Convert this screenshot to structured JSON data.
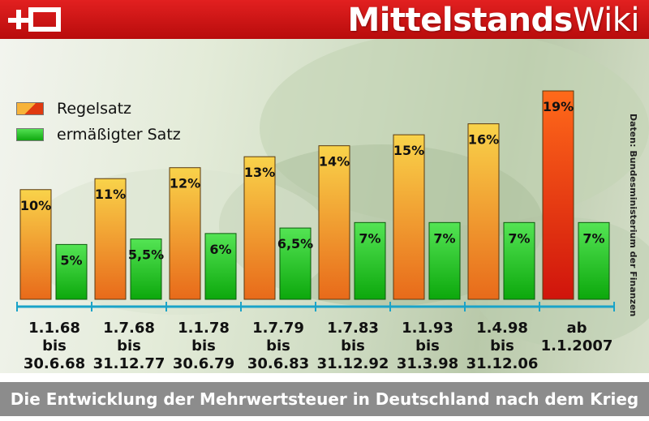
{
  "header": {
    "brand_bold": "Mittelstands",
    "brand_light": "Wiki"
  },
  "source_note": "Daten: Bundesministerium der Finanzen",
  "caption": "Die Entwicklung der Mehrwertsteuer in Deutschland nach dem Krieg",
  "colors": {
    "header_red": "#d21414",
    "regel_orange": "#f5a623",
    "regel_red_highlight": "#ff3b10",
    "erm_green": "#22c122",
    "axis_blue": "#1aa3c8",
    "caption_grey": "#8c8c8c"
  },
  "chart_data": {
    "type": "bar",
    "title": "",
    "xlabel": "",
    "ylabel": "",
    "ylim": [
      0,
      21
    ],
    "grid": false,
    "legend_position": "top-left",
    "categories": [
      [
        "1.1.68",
        "bis",
        "30.6.68"
      ],
      [
        "1.7.68",
        "bis",
        "31.12.77"
      ],
      [
        "1.1.78",
        "bis",
        "30.6.79"
      ],
      [
        "1.7.79",
        "bis",
        "30.6.83"
      ],
      [
        "1.7.83",
        "bis",
        "31.12.92"
      ],
      [
        "1.1.93",
        "bis",
        "31.3.98"
      ],
      [
        "1.4.98",
        "bis",
        "31.12.06"
      ],
      [
        "ab",
        "1.1.2007"
      ]
    ],
    "series": [
      {
        "name": "Regelsatz",
        "values": [
          10,
          11,
          12,
          13,
          14,
          15,
          16,
          19
        ],
        "labels": [
          "10%",
          "11%",
          "12%",
          "13%",
          "14%",
          "15%",
          "16%",
          "19%"
        ]
      },
      {
        "name": "ermäßigter Satz",
        "values": [
          5,
          5.5,
          6,
          6.5,
          7,
          7,
          7,
          7
        ],
        "labels": [
          "5%",
          "5,5%",
          "6%",
          "6,5%",
          "7%",
          "7%",
          "7%",
          "7%"
        ]
      }
    ]
  }
}
